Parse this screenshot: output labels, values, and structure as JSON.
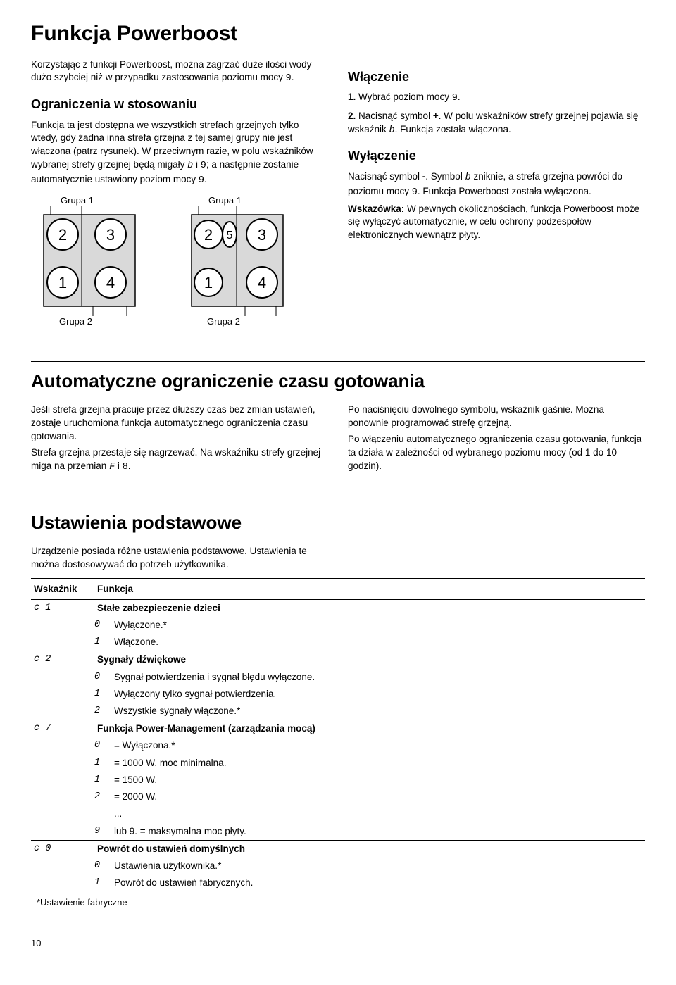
{
  "page_number": "10",
  "section_powerboost": {
    "title": "Funkcja Powerboost",
    "intro": "Korzystając z funkcji Powerboost, można zagrzać duże ilości wody dużo szybciej niż w przypadku zastosowania poziomu mocy ",
    "intro_symbol": "9",
    "intro_end": ".",
    "limits_heading": "Ograniczenia w stosowaniu",
    "limits_text_1": "Funkcja ta jest dostępna we wszystkich strefach grzejnych tylko wtedy, gdy żadna inna strefa grzejna z tej samej grupy nie jest włączona (patrz rysunek). W przeciwnym razie, w polu wskaźników wybranej strefy grzejnej będą migały ",
    "limits_sym_b": "b",
    "limits_and": " i ",
    "limits_sym_9": "9",
    "limits_text_2": "; a następnie zostanie automatycznie ustawiony poziom mocy ",
    "limits_sym_9b": "9",
    "limits_text_3": ".",
    "diagram": {
      "group1_label": "Grupa 1",
      "group2_label": "Grupa 2",
      "bg_color": "#d9d9d9",
      "circle_stroke": "#000000",
      "circle_fill": "#ffffff",
      "text_fontsize": 20
    },
    "on_heading": "Włączenie",
    "on_step1_num": "1.",
    "on_step1_text": "Wybrać poziom mocy ",
    "on_step1_sym": "9",
    "on_step1_end": ".",
    "on_step2_num": "2.",
    "on_step2_text_a": "Nacisnąć symbol ",
    "on_step2_plus": "+",
    "on_step2_text_b": ". W polu wskaźników strefy grzejnej pojawia się wskaźnik ",
    "on_step2_sym_b": "b",
    "on_step2_text_c": ". Funkcja została włączona.",
    "off_heading": "Wyłączenie",
    "off_text_a": "Nacisnąć symbol ",
    "off_minus": "-",
    "off_text_b": ". Symbol ",
    "off_sym_b": "b",
    "off_text_c": " zniknie, a strefa grzejna powróci do poziomu mocy ",
    "off_sym_9": "9",
    "off_text_d": ". Funkcja Powerboost została wyłączona.",
    "tip_label": "Wskazówka: ",
    "tip_text": "W pewnych okolicznościach, funkcja Powerboost może się wyłączyć automatycznie, w celu ochrony podzespołów elektronicznych wewnątrz płyty."
  },
  "section_autolimit": {
    "title": "Automatyczne ograniczenie czasu gotowania",
    "left_p1": "Jeśli strefa grzejna pracuje przez dłuższy czas bez zmian ustawień, zostaje uruchomiona funkcja automatycznego ograniczenia czasu gotowania.",
    "left_p2_a": "Strefa grzejna przestaje się nagrzewać. Na wskaźniku strefy grzejnej miga na przemian ",
    "left_sym_F": "F",
    "left_i": " i ",
    "left_sym_8": "8",
    "left_p2_b": ".",
    "right_p1": "Po naciśnięciu dowolnego symbolu, wskaźnik gaśnie. Można ponownie programować strefę grzejną.",
    "right_p2": "Po włączeniu automatycznego ograniczenia czasu gotowania, funkcja ta działa w zależności od wybranego poziomu mocy (od 1 do 10 godzin)."
  },
  "section_settings": {
    "title": "Ustawienia podstawowe",
    "intro": "Urządzenie posiada różne ustawienia podstawowe. Ustawienia te można dostosowywać do potrzeb użytkownika.",
    "col_indicator": "Wskaźnik",
    "col_function": "Funkcja",
    "rows": [
      {
        "ind": "c 1",
        "title": "Stałe zabezpieczenie dzieci",
        "opts": [
          {
            "sym": "0",
            "text": "Wyłączone.*"
          },
          {
            "sym": "1",
            "text": "Włączone."
          }
        ]
      },
      {
        "ind": "c 2",
        "title": "Sygnały dźwiękowe",
        "opts": [
          {
            "sym": "0",
            "text": "Sygnał potwierdzenia i sygnał błędu wyłączone."
          },
          {
            "sym": "1",
            "text": "Wyłączony tylko sygnał potwierdzenia."
          },
          {
            "sym": "2",
            "text": "Wszystkie sygnały włączone.*"
          }
        ]
      },
      {
        "ind": "c 7",
        "title": "Funkcja Power-Management (zarządzania mocą)",
        "opts": [
          {
            "sym": "0",
            "text": "= Wyłączona.*"
          },
          {
            "sym": "1",
            "text": "= 1000 W. moc minimalna."
          },
          {
            "sym": "1",
            "text": "= 1500 W."
          },
          {
            "sym": "2",
            "text": "= 2000 W."
          },
          {
            "sym": "",
            "text": "..."
          },
          {
            "sym": "9",
            "text": "lub 9. = maksymalna moc płyty."
          }
        ]
      },
      {
        "ind": "c 0",
        "title": "Powrót do ustawień domyślnych",
        "opts": [
          {
            "sym": "0",
            "text": "Ustawienia użytkownika.*"
          },
          {
            "sym": "1",
            "text": "Powrót do ustawień fabrycznych."
          }
        ]
      }
    ],
    "footnote": "*Ustawienie fabryczne"
  }
}
